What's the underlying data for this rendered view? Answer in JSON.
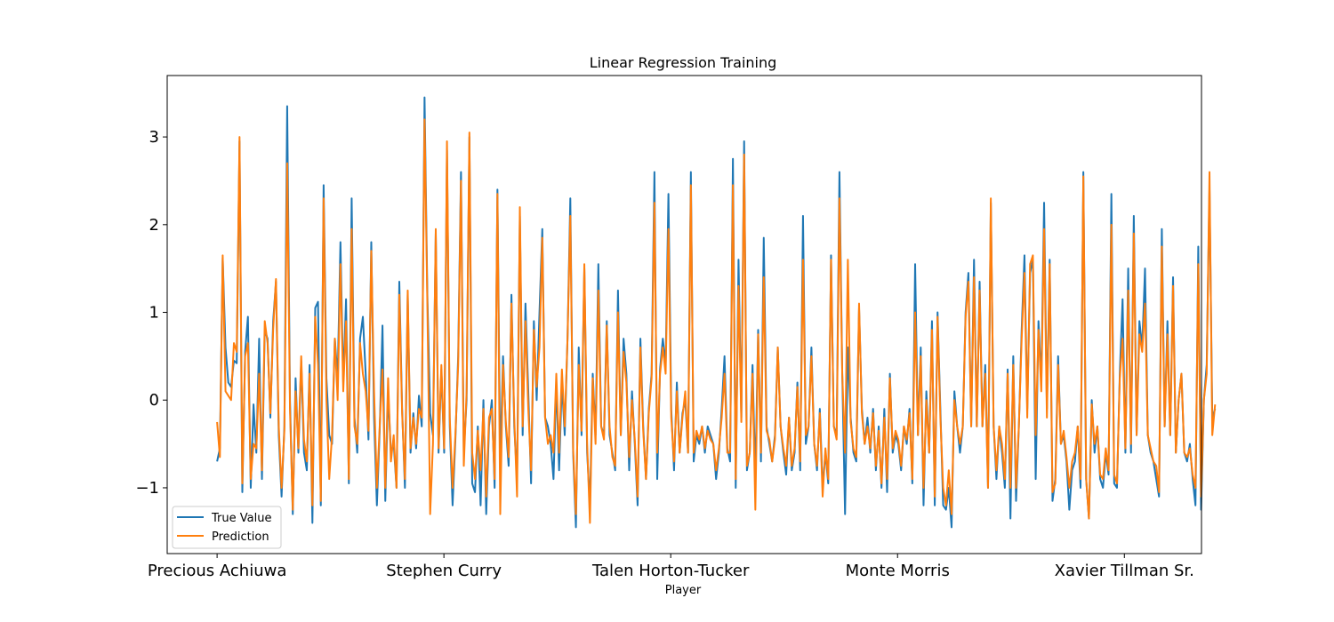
{
  "chart_data": {
    "type": "line",
    "title": "Linear Regression Training",
    "xlabel": "Player",
    "ylabel": "",
    "ylim": [
      -1.75,
      3.7
    ],
    "yticks": [
      -1,
      0,
      1,
      2,
      3
    ],
    "ytick_labels": [
      "−1",
      "0",
      "1",
      "2",
      "3"
    ],
    "xlim": [
      -0.055,
      1.085
    ],
    "xticks": [
      0.0,
      0.25,
      0.5,
      0.75,
      1.0
    ],
    "xtick_labels": [
      "Precious Achiuwa",
      "Stephen Curry",
      "Talen Horton-Tucker",
      "Monte Morris",
      "Xavier Tillman Sr."
    ],
    "grid": false,
    "legend_position": "lower-left",
    "series": [
      {
        "name": "True Value",
        "color": "#1f77b4",
        "values": [
          -0.7,
          -0.55,
          1.62,
          0.6,
          0.2,
          0.15,
          0.45,
          0.42,
          2.95,
          -1.05,
          0.55,
          0.95,
          -1.0,
          -0.05,
          -0.6,
          0.7,
          -0.9,
          0.8,
          0.7,
          -0.2,
          0.9,
          1.35,
          -0.4,
          -1.1,
          -0.3,
          3.35,
          0.0,
          -1.3,
          0.25,
          -0.6,
          0.45,
          -0.6,
          -0.8,
          0.4,
          -1.4,
          1.05,
          1.12,
          -1.2,
          2.45,
          0.25,
          -0.4,
          -0.5,
          0.7,
          0.25,
          1.8,
          0.2,
          1.15,
          -0.95,
          2.3,
          -0.2,
          -0.6,
          0.7,
          0.95,
          0.3,
          -0.45,
          1.8,
          -0.2,
          -1.2,
          -0.35,
          0.85,
          -1.15,
          0.1,
          -0.6,
          -0.5,
          -1.0,
          1.35,
          -0.1,
          -1.0,
          1.2,
          -0.6,
          -0.15,
          -0.55,
          0.05,
          -0.3,
          3.45,
          1.2,
          -0.15,
          -0.4,
          1.9,
          -0.6,
          0.35,
          -0.6,
          2.85,
          -0.3,
          -1.2,
          -0.45,
          0.5,
          2.6,
          -0.6,
          0.0,
          3.0,
          -0.95,
          -1.05,
          -0.3,
          -1.2,
          0.0,
          -1.3,
          -0.3,
          0.0,
          -1.0,
          2.4,
          -0.75,
          0.5,
          -0.3,
          -0.75,
          1.2,
          -0.3,
          -0.9,
          2.1,
          -0.4,
          1.1,
          0.1,
          -0.95,
          0.9,
          0.0,
          1.0,
          1.95,
          -0.2,
          -0.3,
          -0.5,
          -0.9,
          0.2,
          -0.8,
          0.2,
          -0.4,
          0.7,
          2.3,
          -0.6,
          -1.45,
          0.6,
          -0.4,
          1.5,
          -0.6,
          -1.2,
          0.3,
          -0.4,
          1.55,
          -0.3,
          -0.4,
          0.9,
          -0.4,
          -0.6,
          -0.8,
          1.25,
          -0.4,
          0.7,
          0.3,
          -0.8,
          0.1,
          -0.5,
          -1.2,
          0.7,
          -0.3,
          -0.9,
          -0.1,
          0.3,
          2.6,
          -0.9,
          0.35,
          0.7,
          0.4,
          2.35,
          -0.1,
          -0.8,
          0.2,
          -0.6,
          -0.15,
          0.0,
          -0.6,
          2.6,
          -0.7,
          -0.4,
          -0.5,
          -0.3,
          -0.6,
          -0.3,
          -0.4,
          -0.5,
          -0.9,
          -0.6,
          -0.1,
          0.5,
          -0.55,
          -0.7,
          2.75,
          -1.0,
          1.6,
          -0.2,
          2.95,
          -0.8,
          -0.6,
          0.4,
          -0.9,
          0.8,
          -0.7,
          1.85,
          -0.3,
          -0.5,
          -0.7,
          -0.4,
          0.6,
          -0.3,
          -0.6,
          -0.85,
          -0.2,
          -0.8,
          -0.6,
          0.2,
          -0.8,
          2.1,
          -0.5,
          -0.3,
          0.6,
          -0.5,
          -0.8,
          -0.1,
          -1.0,
          -0.6,
          -0.95,
          1.65,
          -0.3,
          -0.4,
          2.6,
          0.3,
          -1.3,
          0.6,
          -0.2,
          -0.6,
          -0.7,
          1.05,
          -0.1,
          -0.5,
          -0.2,
          -0.6,
          -0.1,
          -0.8,
          -0.3,
          -1.0,
          -0.1,
          -1.05,
          0.3,
          -0.6,
          -0.4,
          -0.5,
          -0.8,
          -0.3,
          -0.5,
          -0.1,
          -0.95,
          1.55,
          -0.4,
          0.6,
          -1.2,
          0.1,
          -0.6,
          0.9,
          -1.2,
          1.0,
          -0.1,
          -1.2,
          -1.25,
          -1.0,
          -1.45,
          0.1,
          -0.3,
          -0.6,
          -0.3,
          1.0,
          1.45,
          -0.3,
          1.6,
          -0.3,
          1.35,
          -0.3,
          0.4,
          -1.0,
          2.25,
          -0.3,
          -0.9,
          -0.3,
          -0.6,
          -1.0,
          0.35,
          -1.35,
          0.5,
          -1.15,
          -0.3,
          0.8,
          1.65,
          -0.1,
          1.45,
          1.6,
          -0.9,
          0.9,
          0.2,
          2.25,
          -0.1,
          1.6,
          -1.15,
          -0.9,
          0.5,
          -0.5,
          -0.4,
          -0.7,
          -1.25,
          -0.8,
          -0.7,
          -0.3,
          -1.0,
          2.6,
          -0.9,
          -1.35,
          0.0,
          -0.6,
          -0.3,
          -0.9,
          -1.0,
          -0.6,
          -0.85,
          2.35,
          -0.95,
          -1.0,
          0.3,
          1.15,
          -0.6,
          1.5,
          -0.6,
          2.1,
          -0.4,
          0.9,
          0.6,
          1.5,
          -0.4,
          -0.6,
          -0.7,
          -0.9,
          -1.1,
          1.95,
          -0.3,
          0.9,
          -0.4,
          1.4,
          -0.6,
          0.0,
          0.3,
          -0.6,
          -0.7,
          -0.5,
          -0.9,
          -1.2,
          1.75,
          -1.25,
          0.0,
          0.4,
          2.4,
          -0.2,
          -0.1
        ]
      },
      {
        "name": "Prediction",
        "color": "#ff7f0e",
        "values": [
          -0.25,
          -0.65,
          1.65,
          0.1,
          0.05,
          0.0,
          0.65,
          0.55,
          3.0,
          -0.95,
          0.5,
          0.65,
          -0.9,
          -0.5,
          -0.55,
          0.3,
          -0.8,
          0.9,
          0.65,
          -0.15,
          0.8,
          1.38,
          -0.3,
          -1.0,
          -0.35,
          2.7,
          -0.1,
          -1.25,
          0.1,
          -0.55,
          0.5,
          -0.45,
          -0.7,
          0.3,
          -1.2,
          0.95,
          0.4,
          -1.15,
          2.3,
          0.0,
          -0.9,
          -0.4,
          0.7,
          0.0,
          1.55,
          0.1,
          0.9,
          -0.9,
          1.95,
          -0.3,
          -0.5,
          0.65,
          0.3,
          0.1,
          -0.35,
          1.7,
          0.1,
          -1.0,
          -0.3,
          0.35,
          -1.0,
          0.25,
          -0.7,
          -0.4,
          -1.0,
          1.2,
          -0.15,
          -0.9,
          1.25,
          -0.55,
          -0.2,
          -0.5,
          -0.1,
          -0.2,
          3.2,
          1.1,
          -1.3,
          -0.5,
          1.95,
          -0.55,
          0.4,
          -0.55,
          2.95,
          -0.2,
          -1.0,
          -0.4,
          0.4,
          2.5,
          -0.75,
          0.1,
          3.05,
          -0.6,
          -0.9,
          -0.35,
          -0.8,
          -0.1,
          -1.1,
          -0.2,
          -0.1,
          -0.9,
          2.35,
          -1.3,
          0.4,
          -0.25,
          -0.65,
          1.1,
          -0.2,
          -1.1,
          2.2,
          -0.3,
          0.9,
          -0.1,
          -0.8,
          0.8,
          0.15,
          0.6,
          1.85,
          -0.2,
          -0.5,
          -0.4,
          -0.6,
          0.3,
          -0.6,
          0.35,
          -0.3,
          0.7,
          2.1,
          -0.55,
          -1.3,
          0.4,
          -0.35,
          1.55,
          -0.5,
          -1.4,
          0.25,
          -0.5,
          1.25,
          -0.3,
          -0.45,
          0.85,
          -0.3,
          -0.65,
          -0.75,
          1.0,
          -0.4,
          0.55,
          0.2,
          -0.65,
          0.0,
          -0.45,
          -1.1,
          0.6,
          -0.35,
          -0.9,
          -0.15,
          0.25,
          2.25,
          -0.6,
          0.3,
          0.6,
          0.3,
          1.95,
          -0.2,
          -0.7,
          0.1,
          -0.6,
          -0.2,
          0.1,
          -0.6,
          2.45,
          -0.6,
          -0.35,
          -0.45,
          -0.3,
          -0.55,
          -0.35,
          -0.45,
          -0.5,
          -0.8,
          -0.55,
          -0.2,
          0.3,
          -0.6,
          -0.6,
          2.45,
          -0.9,
          1.3,
          -0.25,
          2.8,
          -0.75,
          -0.6,
          0.3,
          -1.25,
          0.75,
          -0.6,
          1.4,
          -0.35,
          -0.45,
          -0.7,
          -0.45,
          0.6,
          -0.3,
          -0.55,
          -0.75,
          -0.2,
          -0.75,
          -0.55,
          0.15,
          -0.7,
          1.6,
          -0.4,
          -0.3,
          0.5,
          -0.5,
          -0.75,
          -0.15,
          -1.1,
          -0.55,
          -0.9,
          1.6,
          -0.3,
          -0.45,
          2.3,
          0.3,
          -0.6,
          1.6,
          -0.25,
          -0.55,
          -0.65,
          1.1,
          -0.15,
          -0.5,
          -0.3,
          -0.55,
          -0.15,
          -0.75,
          -0.35,
          -0.95,
          -0.2,
          -0.9,
          0.25,
          -0.55,
          -0.35,
          -0.45,
          -0.75,
          -0.3,
          -0.45,
          -0.15,
          -0.9,
          1.0,
          -0.4,
          0.5,
          -1.0,
          0.0,
          -0.6,
          0.8,
          -1.1,
          0.95,
          -0.2,
          -1.0,
          -1.2,
          -0.8,
          -1.3,
          0.0,
          -0.3,
          -0.5,
          -0.3,
          0.95,
          1.35,
          -0.3,
          1.4,
          -0.3,
          1.25,
          -0.3,
          0.3,
          -1.0,
          2.3,
          -0.3,
          -0.8,
          -0.3,
          -0.5,
          -0.9,
          0.3,
          -1.0,
          0.4,
          -1.0,
          -0.3,
          0.7,
          1.45,
          -0.2,
          1.55,
          1.65,
          -0.4,
          0.8,
          0.1,
          1.95,
          -0.2,
          1.55,
          -1.05,
          -0.95,
          0.4,
          -0.5,
          -0.35,
          -0.65,
          -1.0,
          -0.7,
          -0.6,
          -0.3,
          -0.9,
          2.55,
          -0.9,
          -1.35,
          -0.05,
          -0.5,
          -0.3,
          -0.85,
          -0.9,
          -0.55,
          -0.8,
          2.0,
          -0.85,
          -0.95,
          0.25,
          0.7,
          -0.55,
          1.25,
          -0.5,
          1.9,
          -0.4,
          0.75,
          0.55,
          1.1,
          -0.4,
          -0.55,
          -0.7,
          -0.75,
          -1.05,
          1.75,
          -0.3,
          0.75,
          -0.4,
          1.3,
          -0.6,
          0.0,
          0.3,
          -0.6,
          -0.65,
          -0.55,
          -0.85,
          -1.0,
          1.55,
          -1.1,
          0.0,
          0.3,
          2.6,
          -0.4,
          -0.05
        ]
      }
    ]
  }
}
